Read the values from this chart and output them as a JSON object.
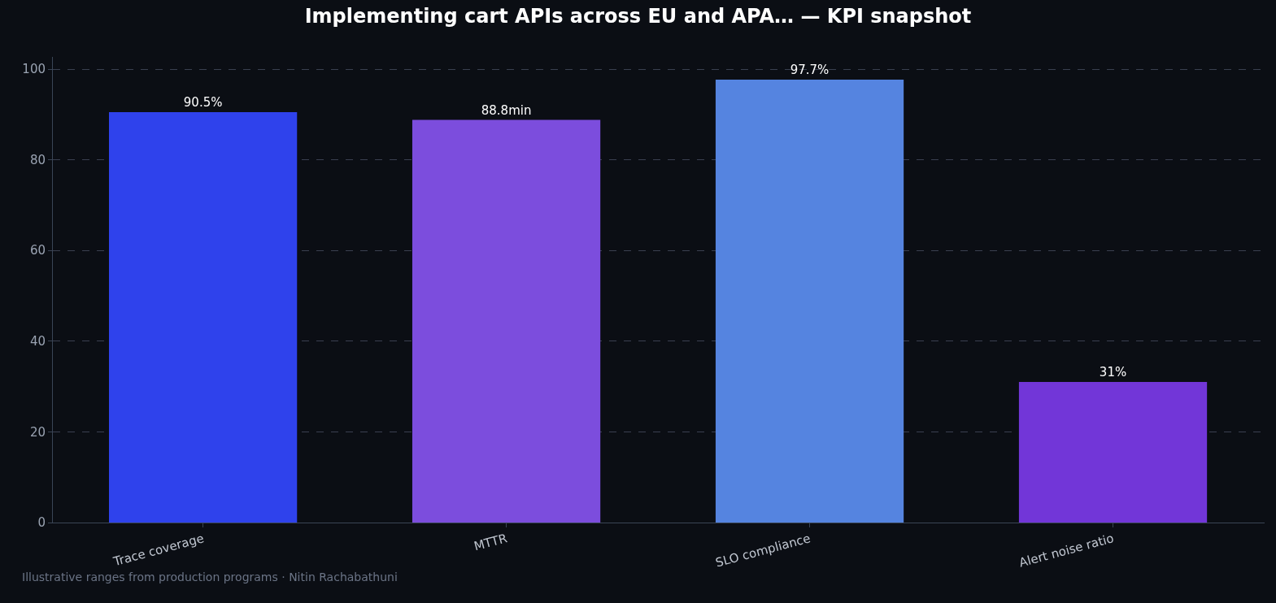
{
  "chart_data": {
    "type": "bar",
    "title": "Implementing cart APIs across EU and APA… — KPI snapshot",
    "categories": [
      "Trace coverage",
      "MTTR",
      "SLO compliance",
      "Alert noise ratio"
    ],
    "values": [
      90.5,
      88.8,
      97.7,
      31
    ],
    "colors": [
      "#2f42ec",
      "#7c4ddd",
      "#5584e0",
      "#7236d8"
    ],
    "value_labels": [
      "90.5%",
      "88.8min",
      "97.7%",
      "31%"
    ],
    "ylim": [
      0,
      102.7
    ],
    "yticks": [
      0,
      20,
      40,
      60,
      80,
      100
    ],
    "grid": "y",
    "annotations": [
      "Illustrative ranges from production programs · Nitin Rachabathuni"
    ]
  }
}
